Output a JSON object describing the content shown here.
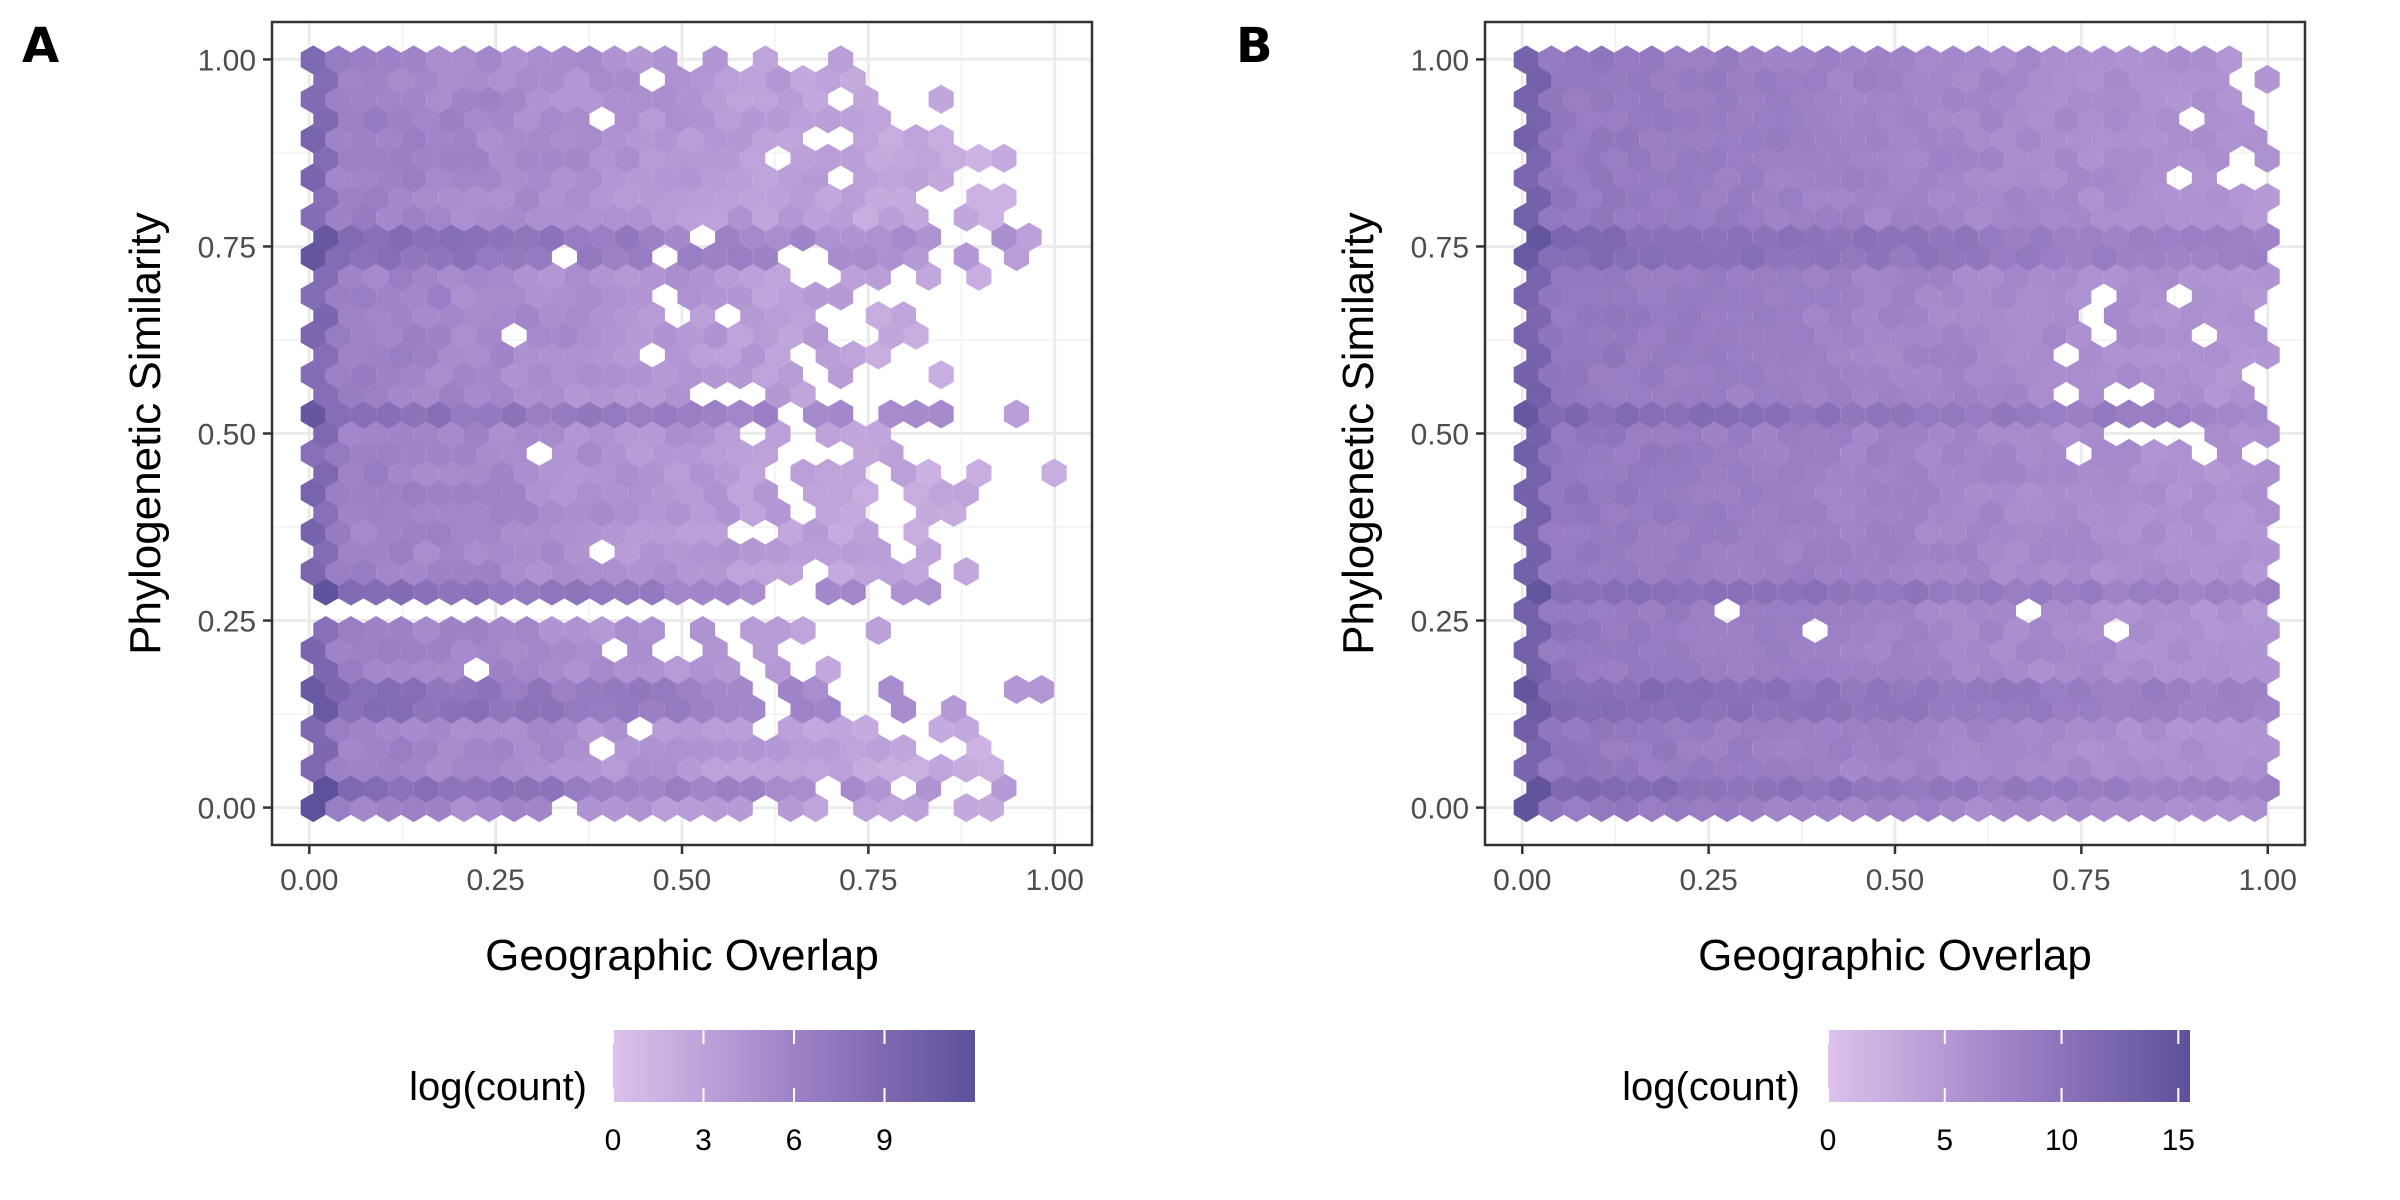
{
  "chart_data": [
    {
      "panel": "A",
      "type": "heatmap",
      "subtype": "hexbin",
      "xlabel": "Geographic Overlap",
      "ylabel": "Phylogenetic Similarity",
      "xlim": [
        -0.05,
        1.05
      ],
      "ylim": [
        -0.05,
        1.05
      ],
      "xticks": [
        "0.00",
        "0.25",
        "0.50",
        "0.75",
        "1.00"
      ],
      "yticks": [
        "0.00",
        "0.25",
        "0.50",
        "0.75",
        "1.00"
      ],
      "grid": true,
      "legend": {
        "title": "log(count)",
        "type": "colorbar",
        "position": "bottom",
        "range": [
          0,
          12
        ],
        "ticks": [
          "0",
          "3",
          "6",
          "9"
        ],
        "colors": [
          "#dcc2ec",
          "#9e82c8",
          "#5e509a"
        ]
      },
      "note": "hex bins span x 0–1, y 0–1; max log(count) ≈12 at (0.02,0.03) and (0.02,0.15); density highest at low overlap; many sparse bins at high overlap; gaps near y≈0.27",
      "density": {
        "row_min_overlap": 0.0,
        "dense_rows_y": [
          0.03,
          0.14,
          0.29,
          0.52,
          0.75
        ],
        "empty_band_y": [
          0.26,
          0.28
        ],
        "max_x_by_y": [
          [
            0.0,
            1.0
          ],
          [
            0.1,
            0.9
          ],
          [
            0.2,
            0.62
          ],
          [
            0.3,
            0.88
          ],
          [
            0.45,
            0.9
          ],
          [
            0.55,
            0.7
          ],
          [
            0.7,
            0.9
          ],
          [
            0.85,
            1.0
          ],
          [
            1.0,
            0.8
          ]
        ]
      }
    },
    {
      "panel": "B",
      "type": "heatmap",
      "subtype": "hexbin",
      "xlabel": "Geographic Overlap",
      "ylabel": "Phylogenetic Similarity",
      "xlim": [
        -0.05,
        1.05
      ],
      "ylim": [
        -0.05,
        1.05
      ],
      "xticks": [
        "0.00",
        "0.25",
        "0.50",
        "0.75",
        "1.00"
      ],
      "yticks": [
        "0.00",
        "0.25",
        "0.50",
        "0.75",
        "1.00"
      ],
      "grid": true,
      "legend": {
        "title": "log(count)",
        "type": "colorbar",
        "position": "bottom",
        "range": [
          0,
          15.5
        ],
        "ticks": [
          "0",
          "5",
          "10",
          "15"
        ],
        "colors": [
          "#dcc2ec",
          "#9e82c8",
          "#5e509a"
        ]
      },
      "note": "dense hexbin covering nearly entire 0–1 square; highest log(count) ≈15 at (0.02,0.03); few gaps near y≈0.25 and in upper-right region",
      "density": {
        "dense_rows_y": [
          0.03,
          0.14,
          0.29,
          0.52,
          0.75
        ],
        "coverage": "near-complete"
      }
    }
  ]
}
